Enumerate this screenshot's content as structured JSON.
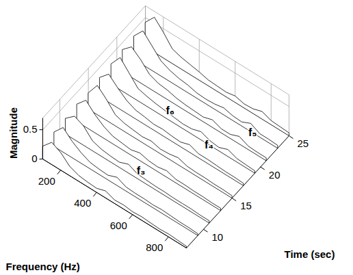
{
  "chart_data": {
    "type": "waterfall",
    "xlabel": "Frequency (Hz)",
    "ylabel": "Time (sec)",
    "zlabel": "Magnitude",
    "xlim": [
      100,
      900
    ],
    "ylim": [
      7,
      25
    ],
    "zlim": [
      0,
      0.7
    ],
    "xticks": [
      200,
      400,
      600,
      800
    ],
    "yticks": [
      10,
      15,
      20,
      25
    ],
    "zticks": [
      0,
      0.5
    ],
    "grid": true,
    "color": "#000000",
    "frequencies": [
      100,
      150,
      200,
      250,
      300,
      350,
      400,
      450,
      500,
      550,
      600,
      650,
      700,
      750,
      800,
      850,
      900
    ],
    "times": [
      7,
      9,
      11,
      13,
      15,
      17,
      19,
      21,
      23,
      25
    ],
    "magnitude": [
      [
        0.22,
        0.38,
        0.3,
        0.16,
        0.1,
        0.08,
        0.07,
        0.12,
        0.06,
        0.07,
        0.05,
        0.06,
        0.05,
        0.04,
        0.05,
        0.04,
        0.03
      ],
      [
        0.25,
        0.42,
        0.28,
        0.18,
        0.11,
        0.09,
        0.08,
        0.14,
        0.07,
        0.06,
        0.06,
        0.05,
        0.06,
        0.05,
        0.04,
        0.04,
        0.03
      ],
      [
        0.27,
        0.4,
        0.33,
        0.17,
        0.12,
        0.1,
        0.09,
        0.15,
        0.08,
        0.07,
        0.06,
        0.06,
        0.05,
        0.05,
        0.05,
        0.04,
        0.04
      ],
      [
        0.3,
        0.46,
        0.31,
        0.2,
        0.13,
        0.11,
        0.09,
        0.13,
        0.09,
        0.08,
        0.11,
        0.06,
        0.06,
        0.05,
        0.05,
        0.04,
        0.04
      ],
      [
        0.28,
        0.5,
        0.36,
        0.19,
        0.14,
        0.12,
        0.1,
        0.12,
        0.08,
        0.09,
        0.12,
        0.07,
        0.06,
        0.06,
        0.05,
        0.05,
        0.04
      ],
      [
        0.33,
        0.48,
        0.34,
        0.22,
        0.15,
        0.13,
        0.1,
        0.11,
        0.09,
        0.08,
        0.13,
        0.07,
        0.07,
        0.06,
        0.05,
        0.05,
        0.04
      ],
      [
        0.35,
        0.55,
        0.38,
        0.21,
        0.17,
        0.14,
        0.12,
        0.1,
        0.08,
        0.09,
        0.14,
        0.08,
        0.06,
        0.12,
        0.06,
        0.05,
        0.04
      ],
      [
        0.38,
        0.52,
        0.4,
        0.24,
        0.18,
        0.16,
        0.12,
        0.1,
        0.09,
        0.08,
        0.13,
        0.07,
        0.07,
        0.13,
        0.06,
        0.05,
        0.05
      ],
      [
        0.4,
        0.58,
        0.42,
        0.26,
        0.19,
        0.15,
        0.13,
        0.09,
        0.08,
        0.09,
        0.12,
        0.08,
        0.07,
        0.14,
        0.06,
        0.06,
        0.05
      ],
      [
        0.42,
        0.6,
        0.44,
        0.25,
        0.2,
        0.17,
        0.14,
        0.1,
        0.09,
        0.08,
        0.11,
        0.07,
        0.08,
        0.13,
        0.07,
        0.06,
        0.05
      ]
    ],
    "annotations": [
      {
        "text": "f₃",
        "frequency": 488,
        "time": 12
      },
      {
        "text": "f₄",
        "frequency": 645,
        "time": 19
      },
      {
        "text": "f₅",
        "frequency": 761,
        "time": 23
      },
      {
        "text": "f₆",
        "frequency": 397,
        "time": 20
      }
    ]
  }
}
